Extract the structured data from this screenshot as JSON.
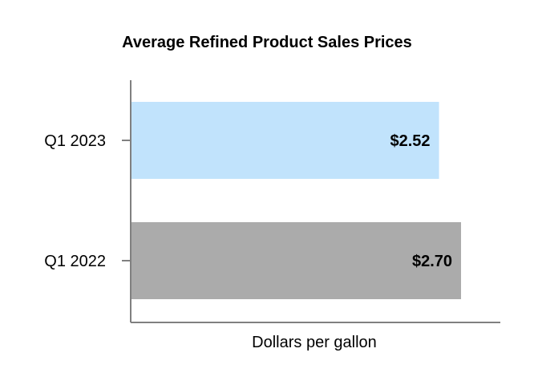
{
  "chart_data": {
    "type": "bar",
    "orientation": "horizontal",
    "title": "Average Refined Product Sales Prices",
    "xlabel": "Dollars per gallon",
    "ylabel": "",
    "categories": [
      "Q1 2023",
      "Q1 2022"
    ],
    "values": [
      2.52,
      2.7
    ],
    "data_labels": [
      "$2.52",
      "$2.70"
    ],
    "colors": [
      "#c1e3fc",
      "#ababab"
    ],
    "xlim": [
      0,
      3.0
    ],
    "grid": false,
    "legend": "none"
  }
}
